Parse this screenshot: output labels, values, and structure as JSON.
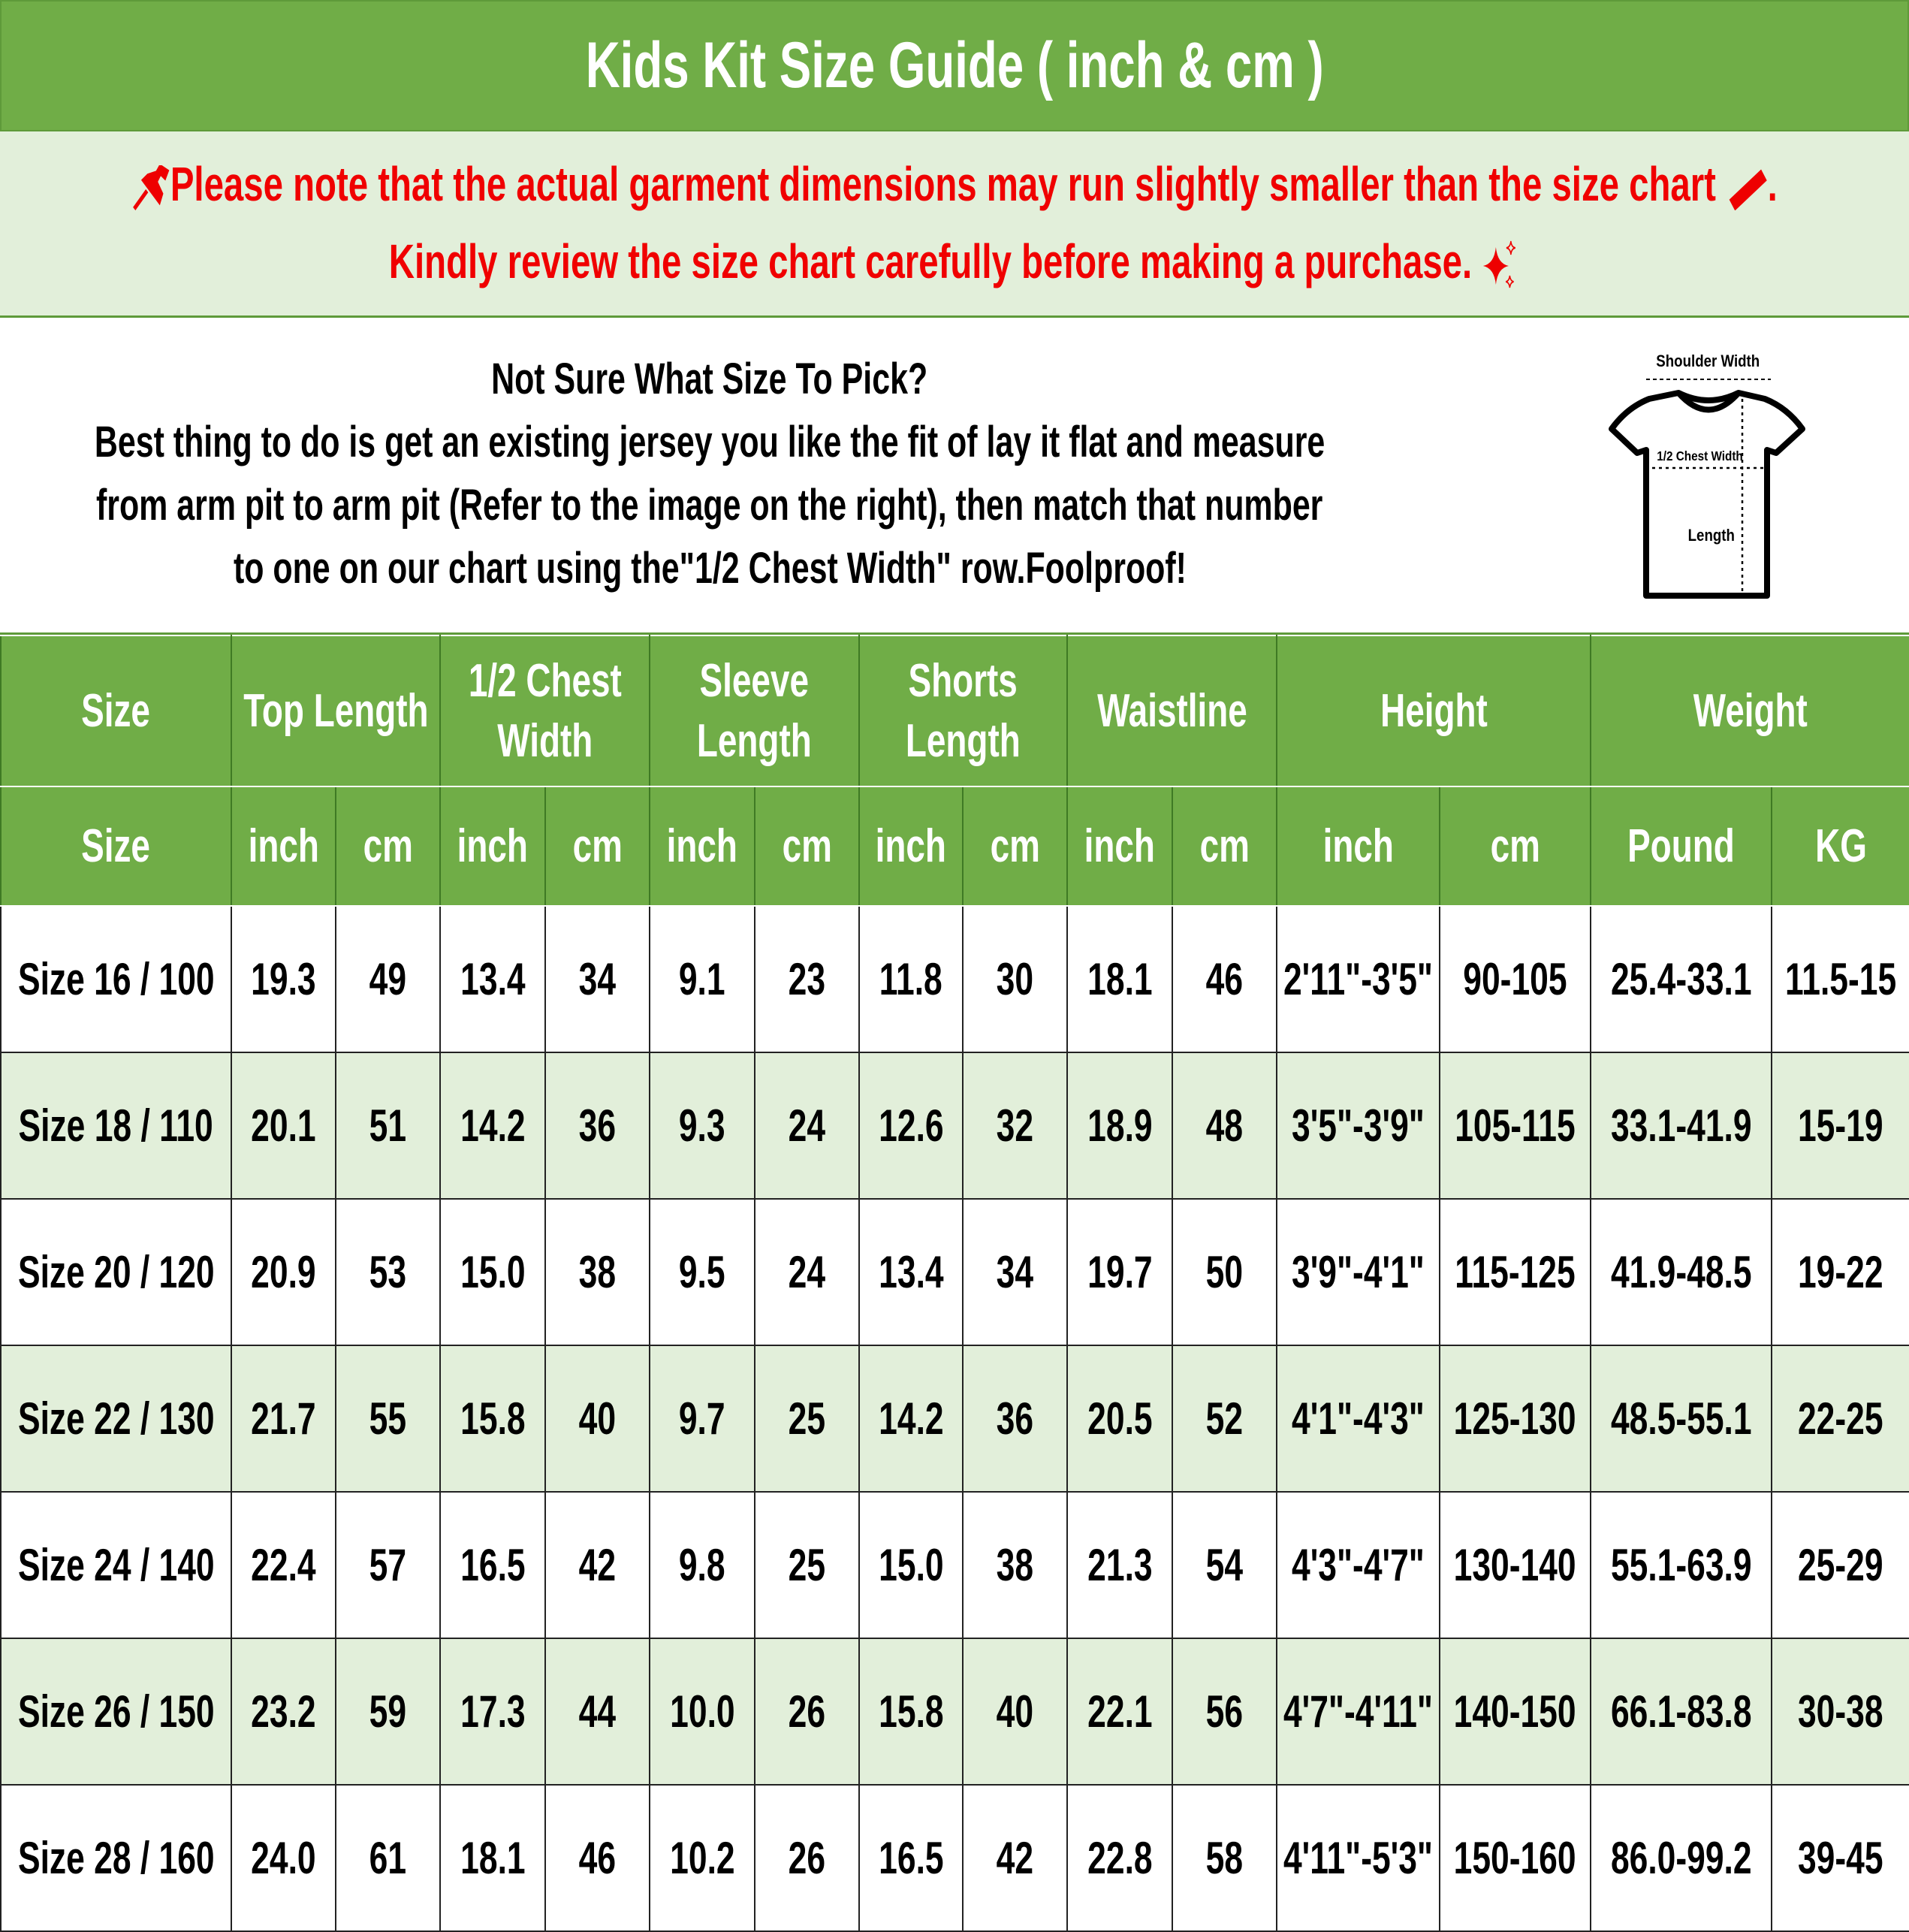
{
  "title": "Kids Kit Size Guide ( inch & cm )",
  "notice": {
    "line1": "Please note that the actual garment dimensions may run slightly smaller than the size chart",
    "line1_end": ".",
    "line2": "Kindly review the size chart carefully before making a purchase.",
    "icons": [
      "pushpin-icon",
      "ruler-icon",
      "sparkles-icon"
    ],
    "color": "#F00000"
  },
  "info": {
    "heading": "Not Sure What Size To Pick?",
    "lines": [
      "Best thing to do is get an existing jersey you like the fit of lay it flat and measure",
      "from arm pit to arm pit (Refer to the image on the right), then match that number",
      "to one on our chart using the\"1/2 Chest Width\" row.Foolproof!"
    ],
    "diagram": {
      "shoulder": "Shoulder Width",
      "chest": "1/2 Chest Width",
      "length": "Length"
    }
  },
  "colors": {
    "header": "#70AD47",
    "alt_row": "#E2EFDA"
  },
  "table": {
    "groups": [
      {
        "label": [
          "Size"
        ],
        "span": 1
      },
      {
        "label": [
          "Top Length"
        ],
        "span": 2
      },
      {
        "label": [
          "1/2 Chest",
          "Width"
        ],
        "span": 2
      },
      {
        "label": [
          "Sleeve",
          "Length"
        ],
        "span": 2
      },
      {
        "label": [
          "Shorts",
          "Length"
        ],
        "span": 2
      },
      {
        "label": [
          "Waistline"
        ],
        "span": 2
      },
      {
        "label": [
          "Height"
        ],
        "span": 2
      },
      {
        "label": [
          "Weight"
        ],
        "span": 2
      }
    ],
    "units": [
      "Size",
      "inch",
      "cm",
      "inch",
      "cm",
      "inch",
      "cm",
      "inch",
      "cm",
      "inch",
      "cm",
      "inch",
      "cm",
      "Pound",
      "KG"
    ],
    "rows": [
      [
        "Size 16 / 100",
        "19.3",
        "49",
        "13.4",
        "34",
        "9.1",
        "23",
        "11.8",
        "30",
        "18.1",
        "46",
        "2'11\"-3'5\"",
        "90-105",
        "25.4-33.1",
        "11.5-15"
      ],
      [
        "Size 18 / 110",
        "20.1",
        "51",
        "14.2",
        "36",
        "9.3",
        "24",
        "12.6",
        "32",
        "18.9",
        "48",
        "3'5\"-3'9\"",
        "105-115",
        "33.1-41.9",
        "15-19"
      ],
      [
        "Size 20 / 120",
        "20.9",
        "53",
        "15.0",
        "38",
        "9.5",
        "24",
        "13.4",
        "34",
        "19.7",
        "50",
        "3'9\"-4'1\"",
        "115-125",
        "41.9-48.5",
        "19-22"
      ],
      [
        "Size 22 / 130",
        "21.7",
        "55",
        "15.8",
        "40",
        "9.7",
        "25",
        "14.2",
        "36",
        "20.5",
        "52",
        "4'1\"-4'3\"",
        "125-130",
        "48.5-55.1",
        "22-25"
      ],
      [
        "Size 24 / 140",
        "22.4",
        "57",
        "16.5",
        "42",
        "9.8",
        "25",
        "15.0",
        "38",
        "21.3",
        "54",
        "4'3\"-4'7\"",
        "130-140",
        "55.1-63.9",
        "25-29"
      ],
      [
        "Size 26 / 150",
        "23.2",
        "59",
        "17.3",
        "44",
        "10.0",
        "26",
        "15.8",
        "40",
        "22.1",
        "56",
        "4'7\"-4'11\"",
        "140-150",
        "66.1-83.8",
        "30-38"
      ],
      [
        "Size 28 / 160",
        "24.0",
        "61",
        "18.1",
        "46",
        "10.2",
        "26",
        "16.5",
        "42",
        "22.8",
        "58",
        "4'11\"-5'3\"",
        "150-160",
        "86.0-99.2",
        "39-45"
      ]
    ]
  }
}
